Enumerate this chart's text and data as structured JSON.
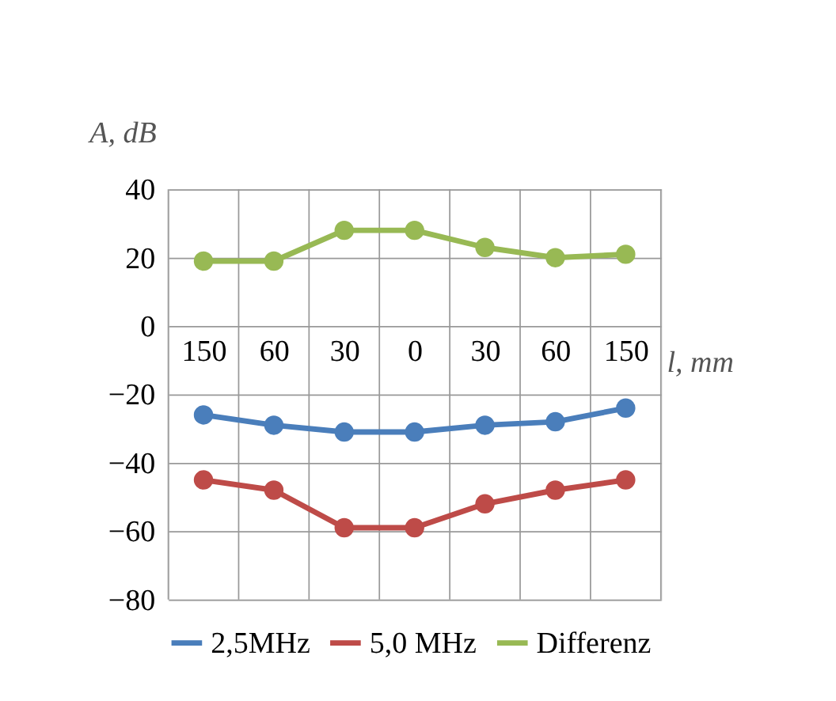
{
  "chart_data": {
    "type": "line",
    "ylabel": "A, dB",
    "xlabel": "l, mm",
    "categories": [
      "150",
      "60",
      "30",
      "0",
      "30",
      "60",
      "150"
    ],
    "series": [
      {
        "name": "2,5MHz",
        "color": "#4a7ebb",
        "values": [
          -26,
          -29,
          -31,
          -31,
          -29,
          -28,
          -24
        ]
      },
      {
        "name": "5,0 MHz",
        "color": "#be4b48",
        "values": [
          -45,
          -48,
          -59,
          -59,
          -52,
          -48,
          -45
        ]
      },
      {
        "name": "Differenz",
        "color": "#98b954",
        "values": [
          19,
          19,
          28,
          28,
          23,
          20,
          21
        ]
      }
    ],
    "ylim": [
      -80,
      40
    ],
    "yticks": [
      -80,
      -60,
      -40,
      -20,
      0,
      20,
      40
    ],
    "grid": true,
    "legend": "bottom",
    "marker": "circle",
    "line_style": "solid"
  }
}
